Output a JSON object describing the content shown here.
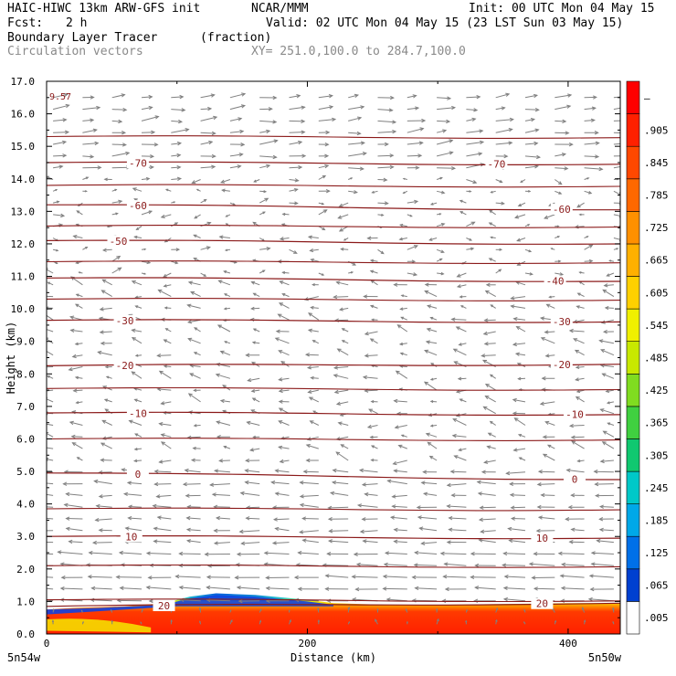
{
  "header": {
    "model": "HAIC-HIWC 13km ARW-GFS init",
    "org": "NCAR/MMM",
    "init": "Init: 00 UTC Mon 04 May 15",
    "fcst_label": "Fcst:",
    "fcst_value": "2 h",
    "valid": "Valid: 02 UTC Mon 04 May 15 (23 LST Sun 03 May 15)",
    "field1": "Boundary Layer Tracer",
    "field1_units": "(fraction)",
    "field2": "Circulation vectors",
    "xy_range": "XY= 251.0,100.0 to 284.7,100.0"
  },
  "chart_data": {
    "type": "heatmap",
    "ylabel": "Height (km)",
    "xlabel": "Distance (km)",
    "xlim": [
      0,
      440
    ],
    "ylim": [
      0,
      17
    ],
    "y_ticks": [
      "0.0",
      "1.0",
      "2.0",
      "3.0",
      "4.0",
      "5.0",
      "6.0",
      "7.0",
      "8.0",
      "9.0",
      "10.0",
      "11.0",
      "12.0",
      "13.0",
      "14.0",
      "15.0",
      "16.0",
      "17.0"
    ],
    "x_ticks": [
      {
        "value": 0,
        "label": "0"
      },
      {
        "value": 200,
        "label": "200"
      },
      {
        "value": 400,
        "label": "400"
      }
    ],
    "x_end_labels": {
      "left": "5n54w",
      "right": "5n50w"
    },
    "max_annotation": "9.57",
    "colorbar": {
      "labels": [
        ".005",
        ".065",
        ".125",
        ".185",
        ".245",
        ".305",
        ".365",
        ".425",
        ".485",
        ".545",
        ".605",
        ".665",
        ".725",
        ".785",
        ".845",
        ".905",
        "–"
      ],
      "colors": [
        "#ffffff",
        "#0040d0",
        "#0070e8",
        "#00a8e8",
        "#00c8c8",
        "#10c870",
        "#40d040",
        "#80dc20",
        "#c8e800",
        "#f0f000",
        "#ffd000",
        "#ffb000",
        "#ff9000",
        "#ff6800",
        "#ff4800",
        "#ff2000",
        "#ff0000"
      ]
    },
    "temperature_contours": [
      {
        "value": 20,
        "label": "20",
        "y_left": 0.85,
        "y_right": 0.95,
        "label_x": [
          90,
          380
        ]
      },
      {
        "value": 10,
        "label": "10",
        "y_left": 3.0,
        "y_right": 2.95,
        "label_x": [
          65,
          380
        ]
      },
      {
        "value": 0,
        "label": "0",
        "y_left": 4.95,
        "y_right": 4.75,
        "label_x": [
          70,
          405
        ]
      },
      {
        "value": -10,
        "label": "-10",
        "y_left": 6.8,
        "y_right": 6.75,
        "label_x": [
          70,
          405
        ]
      },
      {
        "value": -20,
        "label": "-20",
        "y_left": 8.25,
        "y_right": 8.3,
        "label_x": [
          60,
          395
        ]
      },
      {
        "value": -30,
        "label": "-30",
        "y_left": 9.65,
        "y_right": 9.6,
        "label_x": [
          60,
          395
        ]
      },
      {
        "value": -40,
        "label": "-40",
        "y_left": 10.95,
        "y_right": 10.85,
        "label_x": [],
        "label_x2": [
          390
        ]
      },
      {
        "value": -50,
        "label": "-50",
        "y_left": 12.1,
        "y_right": 12.0,
        "label_x": [
          55
        ]
      },
      {
        "value": -60,
        "label": "-60",
        "y_left": 13.2,
        "y_right": 13.05,
        "label_x": [
          70,
          395
        ]
      },
      {
        "value": -70,
        "label": "-70",
        "y_left": 14.5,
        "y_right": 14.45,
        "label_x": [
          70,
          345
        ]
      }
    ],
    "extra_contour_levels_km": [
      1.05,
      2.1,
      3.85,
      6.0,
      7.55,
      10.3,
      11.45,
      12.55,
      13.8,
      15.3
    ]
  }
}
